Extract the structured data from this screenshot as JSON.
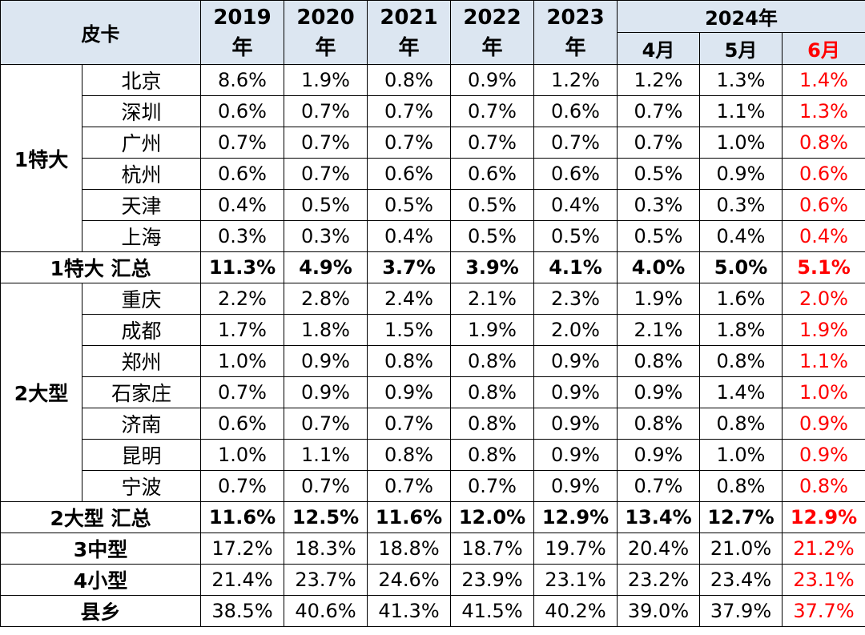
{
  "header": {
    "corner": "皮卡",
    "years": [
      "2019\n年",
      "2020\n年",
      "2021\n年",
      "2022\n年",
      "2023\n年"
    ],
    "group_2024": "2024年",
    "months": [
      "4月",
      "5月",
      "6月"
    ]
  },
  "groups": [
    {
      "label": "1特大",
      "rows": [
        {
          "city": "北京",
          "values": [
            "8.6%",
            "1.9%",
            "0.8%",
            "0.9%",
            "1.2%",
            "1.2%",
            "1.3%",
            "1.4%"
          ]
        },
        {
          "city": "深圳",
          "values": [
            "0.6%",
            "0.7%",
            "0.7%",
            "0.7%",
            "0.6%",
            "0.7%",
            "1.1%",
            "1.3%"
          ]
        },
        {
          "city": "广州",
          "values": [
            "0.7%",
            "0.7%",
            "0.7%",
            "0.7%",
            "0.7%",
            "0.7%",
            "1.0%",
            "0.8%"
          ]
        },
        {
          "city": "杭州",
          "values": [
            "0.6%",
            "0.7%",
            "0.6%",
            "0.6%",
            "0.6%",
            "0.5%",
            "0.9%",
            "0.6%"
          ]
        },
        {
          "city": "天津",
          "values": [
            "0.4%",
            "0.5%",
            "0.5%",
            "0.5%",
            "0.4%",
            "0.3%",
            "0.3%",
            "0.6%"
          ]
        },
        {
          "city": "上海",
          "values": [
            "0.3%",
            "0.3%",
            "0.4%",
            "0.5%",
            "0.5%",
            "0.5%",
            "0.4%",
            "0.4%"
          ]
        }
      ],
      "subtotal": {
        "label": "1特大 汇总",
        "values": [
          "11.3%",
          "4.9%",
          "3.7%",
          "3.9%",
          "4.1%",
          "4.0%",
          "5.0%",
          "5.1%"
        ]
      }
    },
    {
      "label": "2大型",
      "rows": [
        {
          "city": "重庆",
          "values": [
            "2.2%",
            "2.8%",
            "2.4%",
            "2.1%",
            "2.3%",
            "1.9%",
            "1.6%",
            "2.0%"
          ]
        },
        {
          "city": "成都",
          "values": [
            "1.7%",
            "1.8%",
            "1.5%",
            "1.9%",
            "2.0%",
            "2.1%",
            "1.8%",
            "1.9%"
          ]
        },
        {
          "city": "郑州",
          "values": [
            "1.0%",
            "0.9%",
            "0.8%",
            "0.8%",
            "0.9%",
            "0.8%",
            "0.8%",
            "1.1%"
          ]
        },
        {
          "city": "石家庄",
          "values": [
            "0.7%",
            "0.9%",
            "0.9%",
            "0.8%",
            "0.9%",
            "0.9%",
            "1.4%",
            "1.0%"
          ]
        },
        {
          "city": "济南",
          "values": [
            "0.6%",
            "0.7%",
            "0.7%",
            "0.8%",
            "0.9%",
            "0.8%",
            "0.8%",
            "0.9%"
          ]
        },
        {
          "city": "昆明",
          "values": [
            "1.0%",
            "1.1%",
            "0.8%",
            "0.8%",
            "0.9%",
            "0.9%",
            "1.0%",
            "0.9%"
          ]
        },
        {
          "city": "宁波",
          "values": [
            "0.7%",
            "0.7%",
            "0.7%",
            "0.7%",
            "0.9%",
            "0.7%",
            "0.8%",
            "0.8%"
          ]
        }
      ],
      "subtotal": {
        "label": "2大型 汇总",
        "values": [
          "11.6%",
          "12.5%",
          "11.6%",
          "12.0%",
          "12.9%",
          "13.4%",
          "12.7%",
          "12.9%"
        ]
      }
    }
  ],
  "tiers": [
    {
      "label": "3中型",
      "values": [
        "17.2%",
        "18.3%",
        "18.8%",
        "18.7%",
        "19.7%",
        "20.4%",
        "21.0%",
        "21.2%"
      ]
    },
    {
      "label": "4小型",
      "values": [
        "21.4%",
        "23.7%",
        "24.6%",
        "23.9%",
        "23.1%",
        "23.2%",
        "23.4%",
        "23.1%"
      ]
    },
    {
      "label": "县乡",
      "values": [
        "38.5%",
        "40.6%",
        "41.3%",
        "41.5%",
        "40.2%",
        "39.0%",
        "37.9%",
        "37.7%"
      ]
    }
  ],
  "style": {
    "highlight_color": "#ff0000",
    "header_bg": "#dce6f1"
  },
  "chart_data": {
    "type": "table",
    "title": "",
    "columns": [
      "2019年",
      "2020年",
      "2021年",
      "2022年",
      "2023年",
      "2024年4月",
      "2024年5月",
      "2024年6月"
    ],
    "rows": [
      {
        "group": "1特大",
        "name": "北京",
        "values": [
          8.6,
          1.9,
          0.8,
          0.9,
          1.2,
          1.2,
          1.3,
          1.4
        ]
      },
      {
        "group": "1特大",
        "name": "深圳",
        "values": [
          0.6,
          0.7,
          0.7,
          0.7,
          0.6,
          0.7,
          1.1,
          1.3
        ]
      },
      {
        "group": "1特大",
        "name": "广州",
        "values": [
          0.7,
          0.7,
          0.7,
          0.7,
          0.7,
          0.7,
          1.0,
          0.8
        ]
      },
      {
        "group": "1特大",
        "name": "杭州",
        "values": [
          0.6,
          0.7,
          0.6,
          0.6,
          0.6,
          0.5,
          0.9,
          0.6
        ]
      },
      {
        "group": "1特大",
        "name": "天津",
        "values": [
          0.4,
          0.5,
          0.5,
          0.5,
          0.4,
          0.3,
          0.3,
          0.6
        ]
      },
      {
        "group": "1特大",
        "name": "上海",
        "values": [
          0.3,
          0.3,
          0.4,
          0.5,
          0.5,
          0.5,
          0.4,
          0.4
        ]
      },
      {
        "group": "1特大",
        "name": "1特大 汇总",
        "values": [
          11.3,
          4.9,
          3.7,
          3.9,
          4.1,
          4.0,
          5.0,
          5.1
        ]
      },
      {
        "group": "2大型",
        "name": "重庆",
        "values": [
          2.2,
          2.8,
          2.4,
          2.1,
          2.3,
          1.9,
          1.6,
          2.0
        ]
      },
      {
        "group": "2大型",
        "name": "成都",
        "values": [
          1.7,
          1.8,
          1.5,
          1.9,
          2.0,
          2.1,
          1.8,
          1.9
        ]
      },
      {
        "group": "2大型",
        "name": "郑州",
        "values": [
          1.0,
          0.9,
          0.8,
          0.8,
          0.9,
          0.8,
          0.8,
          1.1
        ]
      },
      {
        "group": "2大型",
        "name": "石家庄",
        "values": [
          0.7,
          0.9,
          0.9,
          0.8,
          0.9,
          0.9,
          1.4,
          1.0
        ]
      },
      {
        "group": "2大型",
        "name": "济南",
        "values": [
          0.6,
          0.7,
          0.7,
          0.8,
          0.9,
          0.8,
          0.8,
          0.9
        ]
      },
      {
        "group": "2大型",
        "name": "昆明",
        "values": [
          1.0,
          1.1,
          0.8,
          0.8,
          0.9,
          0.9,
          1.0,
          0.9
        ]
      },
      {
        "group": "2大型",
        "name": "宁波",
        "values": [
          0.7,
          0.7,
          0.7,
          0.7,
          0.9,
          0.7,
          0.8,
          0.8
        ]
      },
      {
        "group": "2大型",
        "name": "2大型 汇总",
        "values": [
          11.6,
          12.5,
          11.6,
          12.0,
          12.9,
          13.4,
          12.7,
          12.9
        ]
      },
      {
        "group": "",
        "name": "3中型",
        "values": [
          17.2,
          18.3,
          18.8,
          18.7,
          19.7,
          20.4,
          21.0,
          21.2
        ]
      },
      {
        "group": "",
        "name": "4小型",
        "values": [
          21.4,
          23.7,
          24.6,
          23.9,
          23.1,
          23.2,
          23.4,
          23.1
        ]
      },
      {
        "group": "",
        "name": "县乡",
        "values": [
          38.5,
          40.6,
          41.3,
          41.5,
          40.2,
          39.0,
          37.9,
          37.7
        ]
      }
    ],
    "unit": "%"
  }
}
